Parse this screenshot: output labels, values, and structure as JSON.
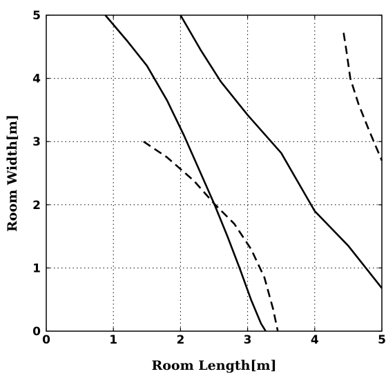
{
  "chart_data": {
    "type": "line",
    "title": "",
    "xlabel": "Room Length[m]",
    "ylabel": "Room Width[m]",
    "xlim": [
      0,
      5
    ],
    "ylim": [
      0,
      5
    ],
    "xticks": [
      0,
      1,
      2,
      3,
      4,
      5
    ],
    "yticks": [
      0,
      1,
      2,
      3,
      4,
      5
    ],
    "xtick_labels": [
      "0",
      "1",
      "2",
      "3",
      "4",
      "5"
    ],
    "ytick_labels": [
      "0",
      "1",
      "2",
      "3",
      "4",
      "5"
    ],
    "grid": true,
    "grid_style": "dotted",
    "series": [
      {
        "style": "solid",
        "color": "#000000",
        "points": [
          [
            0.88,
            5.0
          ],
          [
            1.2,
            4.6
          ],
          [
            1.5,
            4.2
          ],
          [
            1.8,
            3.65
          ],
          [
            2.05,
            3.1
          ],
          [
            2.3,
            2.5
          ],
          [
            2.5,
            2.02
          ],
          [
            2.7,
            1.5
          ],
          [
            2.88,
            1.0
          ],
          [
            3.05,
            0.5
          ],
          [
            3.2,
            0.12
          ],
          [
            3.27,
            0.0
          ]
        ]
      },
      {
        "style": "solid",
        "color": "#000000",
        "points": [
          [
            2.0,
            5.0
          ],
          [
            2.3,
            4.45
          ],
          [
            2.6,
            3.95
          ],
          [
            3.0,
            3.42
          ],
          [
            3.5,
            2.82
          ],
          [
            4.0,
            1.9
          ],
          [
            4.5,
            1.35
          ],
          [
            5.0,
            0.68
          ]
        ]
      },
      {
        "style": "dashed",
        "color": "#000000",
        "points": [
          [
            1.45,
            3.0
          ],
          [
            1.8,
            2.75
          ],
          [
            2.2,
            2.38
          ],
          [
            2.5,
            2.02
          ],
          [
            2.8,
            1.7
          ],
          [
            3.05,
            1.3
          ],
          [
            3.25,
            0.85
          ],
          [
            3.38,
            0.35
          ],
          [
            3.45,
            0.0
          ]
        ]
      },
      {
        "style": "dashed",
        "color": "#000000",
        "points": [
          [
            4.43,
            4.72
          ],
          [
            4.47,
            4.45
          ],
          [
            4.53,
            4.0
          ],
          [
            4.65,
            3.6
          ],
          [
            4.8,
            3.2
          ],
          [
            4.92,
            2.9
          ],
          [
            5.0,
            2.7
          ]
        ]
      }
    ]
  }
}
